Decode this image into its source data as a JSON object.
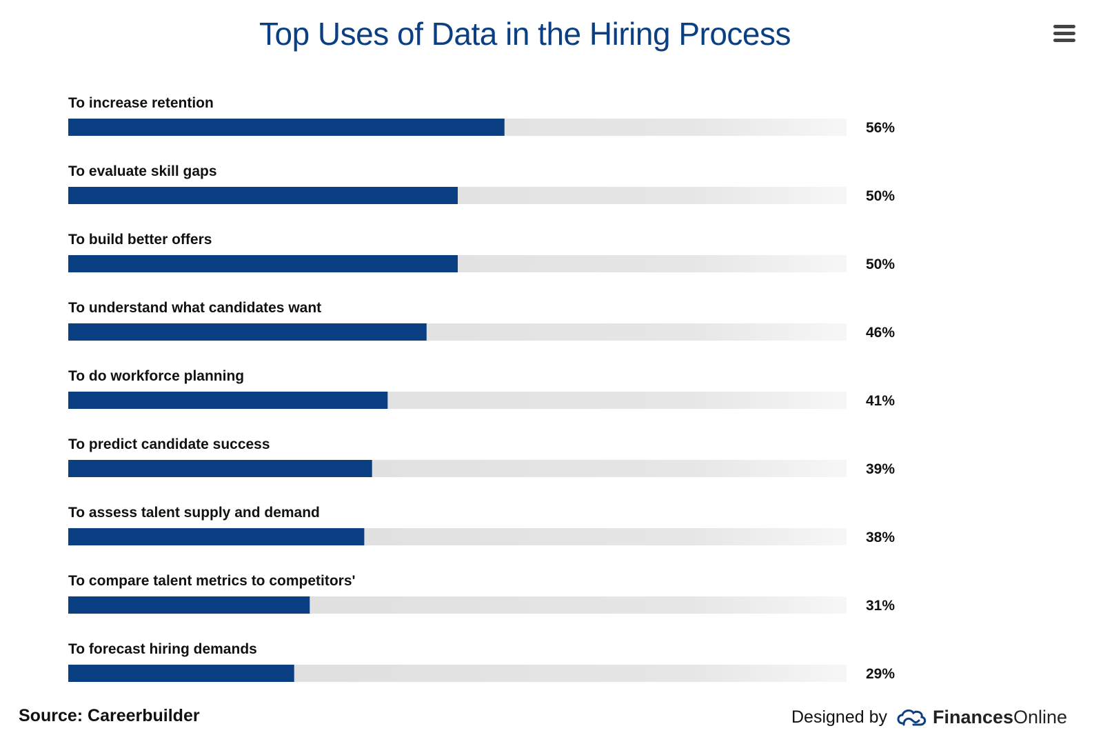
{
  "header": {
    "title": "Top Uses of Data in the Hiring Process",
    "menu_icon": "hamburger-menu-icon"
  },
  "chart_data": {
    "type": "bar",
    "orientation": "horizontal",
    "title": "Top Uses of Data in the Hiring Process",
    "categories": [
      "To increase retention",
      "To evaluate skill gaps",
      "To build better offers",
      "To understand what candidates want",
      "To do workforce planning",
      "To predict candidate success",
      "To assess talent supply and demand",
      "To compare talent metrics to competitors'",
      "To forecast hiring demands"
    ],
    "values": [
      56,
      50,
      50,
      46,
      41,
      39,
      38,
      31,
      29
    ],
    "value_labels": [
      "56%",
      "50%",
      "50%",
      "46%",
      "41%",
      "39%",
      "38%",
      "31%",
      "29%"
    ],
    "unit": "%",
    "xlim": [
      0,
      100
    ],
    "bar_color": "#0b3f83",
    "track_color": "#dcdcdc",
    "grid": false,
    "legend": "none"
  },
  "footer": {
    "source": "Source: Careerbuilder",
    "designed_by": "Designed by",
    "brand_bold": "Finances",
    "brand_light": "Online",
    "brand_icon": "financesonline-logo-icon",
    "logo_color": "#0b3f83"
  }
}
